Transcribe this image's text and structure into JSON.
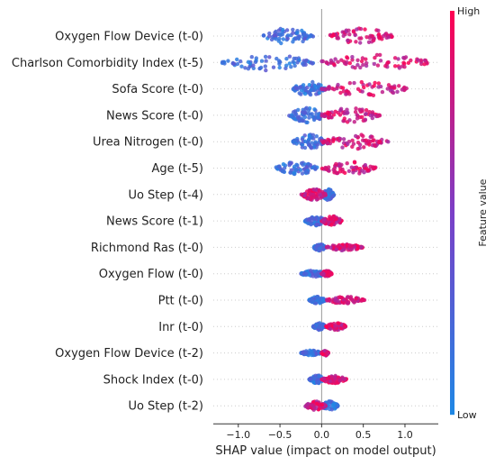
{
  "chart_data": {
    "type": "scatter",
    "subtype": "shap-beeswarm",
    "xlabel": "SHAP value (impact on model output)",
    "xlim": [
      -1.3,
      1.4
    ],
    "xticks": [
      -1.0,
      -0.5,
      0.0,
      0.5,
      1.0
    ],
    "xtick_labels": [
      "−1.0",
      "−0.5",
      "0.0",
      "0.5",
      "1.0"
    ],
    "colorbar": {
      "label": "Feature value",
      "high_label": "High",
      "low_label": "Low",
      "low_color": "#1e88e5",
      "high_color": "#ff0051",
      "mid_color": "#7b3fc7"
    },
    "features": [
      {
        "name": "Oxygen Flow Device (t-0)",
        "low_range": [
          -0.7,
          -0.1
        ],
        "high_range": [
          0.1,
          0.85
        ],
        "spread": 1.0
      },
      {
        "name": "Charlson Comorbidity Index (t-5)",
        "low_range": [
          -1.2,
          -0.1
        ],
        "high_range": [
          0.0,
          1.35
        ],
        "spread": 1.0
      },
      {
        "name": "Sofa Score (t-0)",
        "low_range": [
          -0.35,
          0.05
        ],
        "high_range": [
          0.0,
          1.05
        ],
        "spread": 0.9
      },
      {
        "name": "News Score (t-0)",
        "low_range": [
          -0.4,
          0.05
        ],
        "high_range": [
          0.0,
          0.7
        ],
        "spread": 0.9
      },
      {
        "name": "Urea Nitrogen (t-0)",
        "low_range": [
          -0.35,
          0.05
        ],
        "high_range": [
          0.0,
          0.8
        ],
        "spread": 0.9
      },
      {
        "name": "Age (t-5)",
        "low_range": [
          -0.55,
          -0.05
        ],
        "high_range": [
          0.0,
          0.65
        ],
        "spread": 0.8
      },
      {
        "name": "Uo Step (t-4)",
        "low_range": [
          0.0,
          0.15
        ],
        "high_range": [
          -0.25,
          0.05
        ],
        "spread": 0.7
      },
      {
        "name": "News Score (t-1)",
        "low_range": [
          -0.2,
          0.05
        ],
        "high_range": [
          0.0,
          0.25
        ],
        "spread": 0.6
      },
      {
        "name": "Richmond Ras (t-0)",
        "low_range": [
          -0.1,
          0.05
        ],
        "high_range": [
          0.05,
          0.5
        ],
        "spread": 0.4
      },
      {
        "name": "Oxygen Flow (t-0)",
        "low_range": [
          -0.25,
          0.05
        ],
        "high_range": [
          0.0,
          0.12
        ],
        "spread": 0.4
      },
      {
        "name": "Ptt (t-0)",
        "low_range": [
          -0.15,
          0.05
        ],
        "high_range": [
          0.05,
          0.52
        ],
        "spread": 0.45
      },
      {
        "name": "Inr (t-0)",
        "low_range": [
          -0.1,
          0.05
        ],
        "high_range": [
          0.05,
          0.3
        ],
        "spread": 0.45
      },
      {
        "name": "Oxygen Flow Device (t-2)",
        "low_range": [
          -0.25,
          0.0
        ],
        "high_range": [
          0.0,
          0.08
        ],
        "spread": 0.35
      },
      {
        "name": "Shock Index (t-0)",
        "low_range": [
          -0.15,
          0.05
        ],
        "high_range": [
          0.0,
          0.3
        ],
        "spread": 0.5
      },
      {
        "name": "Uo Step (t-2)",
        "low_range": [
          0.0,
          0.2
        ],
        "high_range": [
          -0.2,
          0.05
        ],
        "spread": 0.55
      }
    ]
  }
}
